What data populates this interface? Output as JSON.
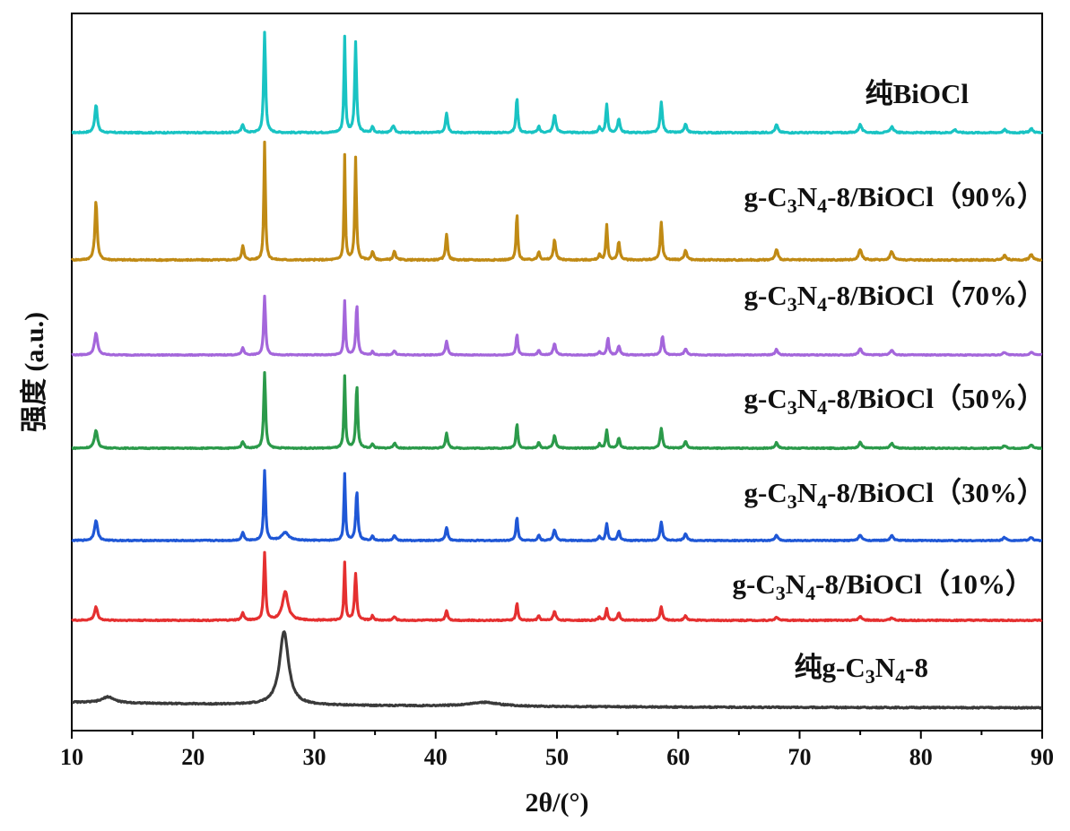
{
  "chart_data": {
    "type": "line",
    "xlabel": "2θ/(°)",
    "ylabel": "强度 (a.u.)",
    "xlim": [
      10,
      90
    ],
    "xticks": [
      "10",
      "20",
      "30",
      "40",
      "50",
      "60",
      "70",
      "80",
      "90"
    ],
    "yticks_shown": false,
    "grid": false,
    "legend": "labels placed above each curve on the right",
    "series": [
      {
        "name": "纯BiOCl",
        "label_parts": [
          "纯BiOCl"
        ],
        "color": "#19c3c3",
        "baseline": 0.0,
        "peaks": [
          [
            12.0,
            0.28,
            0.25
          ],
          [
            24.1,
            0.08,
            0.25
          ],
          [
            25.9,
            1.0,
            0.18
          ],
          [
            32.5,
            0.95,
            0.15
          ],
          [
            33.4,
            0.9,
            0.18
          ],
          [
            34.8,
            0.06,
            0.2
          ],
          [
            36.5,
            0.07,
            0.25
          ],
          [
            40.9,
            0.2,
            0.22
          ],
          [
            46.7,
            0.35,
            0.18
          ],
          [
            48.5,
            0.06,
            0.2
          ],
          [
            49.8,
            0.18,
            0.25
          ],
          [
            53.5,
            0.05,
            0.2
          ],
          [
            54.1,
            0.28,
            0.18
          ],
          [
            55.1,
            0.14,
            0.22
          ],
          [
            58.6,
            0.3,
            0.22
          ],
          [
            60.6,
            0.08,
            0.25
          ],
          [
            68.1,
            0.08,
            0.25
          ],
          [
            75.0,
            0.08,
            0.3
          ],
          [
            77.6,
            0.06,
            0.3
          ],
          [
            82.8,
            0.03,
            0.3
          ],
          [
            86.9,
            0.03,
            0.3
          ],
          [
            89.1,
            0.04,
            0.3
          ]
        ]
      },
      {
        "name": "g-C3N4-8/BiOCl（90%）",
        "label_parts": [
          "g-C",
          "3",
          "N",
          "4",
          "-8/BiOCl（90%）"
        ],
        "color": "#c08a14",
        "baseline": 0.0,
        "peaks": [
          [
            12.0,
            0.55,
            0.22
          ],
          [
            24.1,
            0.13,
            0.22
          ],
          [
            25.9,
            1.1,
            0.15
          ],
          [
            32.5,
            0.97,
            0.13
          ],
          [
            33.4,
            0.95,
            0.16
          ],
          [
            34.8,
            0.08,
            0.2
          ],
          [
            36.6,
            0.08,
            0.22
          ],
          [
            40.9,
            0.24,
            0.2
          ],
          [
            46.7,
            0.43,
            0.16
          ],
          [
            48.5,
            0.08,
            0.2
          ],
          [
            49.8,
            0.19,
            0.22
          ],
          [
            53.5,
            0.05,
            0.2
          ],
          [
            54.1,
            0.33,
            0.16
          ],
          [
            55.1,
            0.17,
            0.2
          ],
          [
            58.6,
            0.35,
            0.2
          ],
          [
            60.6,
            0.09,
            0.25
          ],
          [
            68.1,
            0.1,
            0.25
          ],
          [
            75.0,
            0.1,
            0.3
          ],
          [
            77.6,
            0.08,
            0.3
          ],
          [
            86.9,
            0.04,
            0.3
          ],
          [
            89.1,
            0.05,
            0.3
          ]
        ]
      },
      {
        "name": "g-C3N4-8/BiOCl（70%）",
        "label_parts": [
          "g-C",
          "3",
          "N",
          "4",
          "-8/BiOCl（70%）"
        ],
        "color": "#a466db",
        "baseline": 0.0,
        "peaks": [
          [
            12.0,
            0.32,
            0.3
          ],
          [
            24.1,
            0.1,
            0.25
          ],
          [
            25.9,
            0.85,
            0.18
          ],
          [
            32.5,
            0.78,
            0.15
          ],
          [
            33.5,
            0.73,
            0.18
          ],
          [
            34.8,
            0.05,
            0.2
          ],
          [
            36.6,
            0.06,
            0.25
          ],
          [
            40.9,
            0.2,
            0.22
          ],
          [
            46.7,
            0.3,
            0.18
          ],
          [
            48.5,
            0.07,
            0.2
          ],
          [
            49.8,
            0.16,
            0.25
          ],
          [
            53.5,
            0.05,
            0.2
          ],
          [
            54.2,
            0.25,
            0.18
          ],
          [
            55.1,
            0.13,
            0.22
          ],
          [
            58.7,
            0.27,
            0.22
          ],
          [
            60.6,
            0.09,
            0.25
          ],
          [
            68.1,
            0.08,
            0.25
          ],
          [
            75.0,
            0.09,
            0.3
          ],
          [
            77.6,
            0.07,
            0.3
          ],
          [
            86.9,
            0.04,
            0.3
          ],
          [
            89.1,
            0.04,
            0.3
          ]
        ]
      },
      {
        "name": "g-C3N4-8/BiOCl（50%）",
        "label_parts": [
          "g-C",
          "3",
          "N",
          "4",
          "-8/BiOCl（50%）"
        ],
        "color": "#2b9a4a",
        "baseline": 0.0,
        "peaks": [
          [
            12.0,
            0.22,
            0.3
          ],
          [
            24.1,
            0.08,
            0.25
          ],
          [
            25.9,
            0.92,
            0.18
          ],
          [
            32.5,
            0.87,
            0.15
          ],
          [
            33.5,
            0.77,
            0.18
          ],
          [
            34.8,
            0.05,
            0.2
          ],
          [
            36.6,
            0.06,
            0.25
          ],
          [
            40.9,
            0.18,
            0.22
          ],
          [
            46.7,
            0.3,
            0.18
          ],
          [
            48.5,
            0.07,
            0.2
          ],
          [
            49.8,
            0.15,
            0.25
          ],
          [
            53.5,
            0.05,
            0.2
          ],
          [
            54.1,
            0.22,
            0.18
          ],
          [
            55.1,
            0.12,
            0.22
          ],
          [
            58.6,
            0.24,
            0.22
          ],
          [
            60.6,
            0.08,
            0.25
          ],
          [
            68.1,
            0.07,
            0.25
          ],
          [
            75.0,
            0.07,
            0.3
          ],
          [
            77.6,
            0.06,
            0.3
          ],
          [
            86.9,
            0.03,
            0.3
          ],
          [
            89.1,
            0.04,
            0.3
          ]
        ]
      },
      {
        "name": "g-C3N4-8/BiOCl（30%）",
        "label_parts": [
          "g-C",
          "3",
          "N",
          "4",
          "-8/BiOCl（30%）"
        ],
        "color": "#1f57d6",
        "baseline": 0.0,
        "peaks": [
          [
            12.0,
            0.26,
            0.3
          ],
          [
            24.1,
            0.1,
            0.25
          ],
          [
            25.9,
            0.88,
            0.18
          ],
          [
            27.6,
            0.1,
            0.7
          ],
          [
            32.5,
            0.84,
            0.15
          ],
          [
            33.5,
            0.63,
            0.2
          ],
          [
            34.8,
            0.06,
            0.2
          ],
          [
            36.6,
            0.06,
            0.25
          ],
          [
            40.9,
            0.17,
            0.22
          ],
          [
            46.7,
            0.3,
            0.18
          ],
          [
            48.5,
            0.07,
            0.2
          ],
          [
            49.8,
            0.14,
            0.25
          ],
          [
            53.5,
            0.05,
            0.2
          ],
          [
            54.1,
            0.22,
            0.18
          ],
          [
            55.1,
            0.12,
            0.22
          ],
          [
            58.6,
            0.24,
            0.22
          ],
          [
            60.6,
            0.09,
            0.25
          ],
          [
            68.1,
            0.07,
            0.25
          ],
          [
            75.0,
            0.07,
            0.3
          ],
          [
            77.6,
            0.06,
            0.3
          ],
          [
            86.9,
            0.04,
            0.3
          ],
          [
            89.1,
            0.04,
            0.3
          ]
        ]
      },
      {
        "name": "g-C3N4-8/BiOCl（10%）",
        "label_parts": [
          "g-C",
          "3",
          "N",
          "4",
          "-8/BiOCl（10%）"
        ],
        "color": "#e53030",
        "baseline": 0.0,
        "peaks": [
          [
            12.0,
            0.15,
            0.3
          ],
          [
            24.1,
            0.08,
            0.25
          ],
          [
            25.9,
            0.75,
            0.18
          ],
          [
            27.6,
            0.32,
            0.55
          ],
          [
            32.5,
            0.64,
            0.15
          ],
          [
            33.4,
            0.52,
            0.2
          ],
          [
            34.8,
            0.05,
            0.2
          ],
          [
            36.6,
            0.04,
            0.25
          ],
          [
            40.9,
            0.11,
            0.22
          ],
          [
            46.7,
            0.19,
            0.18
          ],
          [
            48.5,
            0.05,
            0.2
          ],
          [
            49.8,
            0.1,
            0.25
          ],
          [
            53.5,
            0.04,
            0.2
          ],
          [
            54.1,
            0.13,
            0.18
          ],
          [
            55.1,
            0.08,
            0.22
          ],
          [
            58.6,
            0.15,
            0.22
          ],
          [
            60.6,
            0.05,
            0.25
          ],
          [
            68.1,
            0.04,
            0.25
          ],
          [
            75.0,
            0.04,
            0.3
          ],
          [
            77.6,
            0.03,
            0.3
          ]
        ]
      },
      {
        "name": "纯g-C3N4-8",
        "label_parts": [
          "纯g-C",
          "3",
          "N",
          "4",
          "-8"
        ],
        "color": "#3a3a3a",
        "baseline": 0.0,
        "peaks": [
          [
            13.0,
            0.06,
            1.2
          ],
          [
            27.5,
            0.74,
            0.9
          ],
          [
            44.0,
            0.04,
            3.0
          ]
        ]
      }
    ]
  }
}
